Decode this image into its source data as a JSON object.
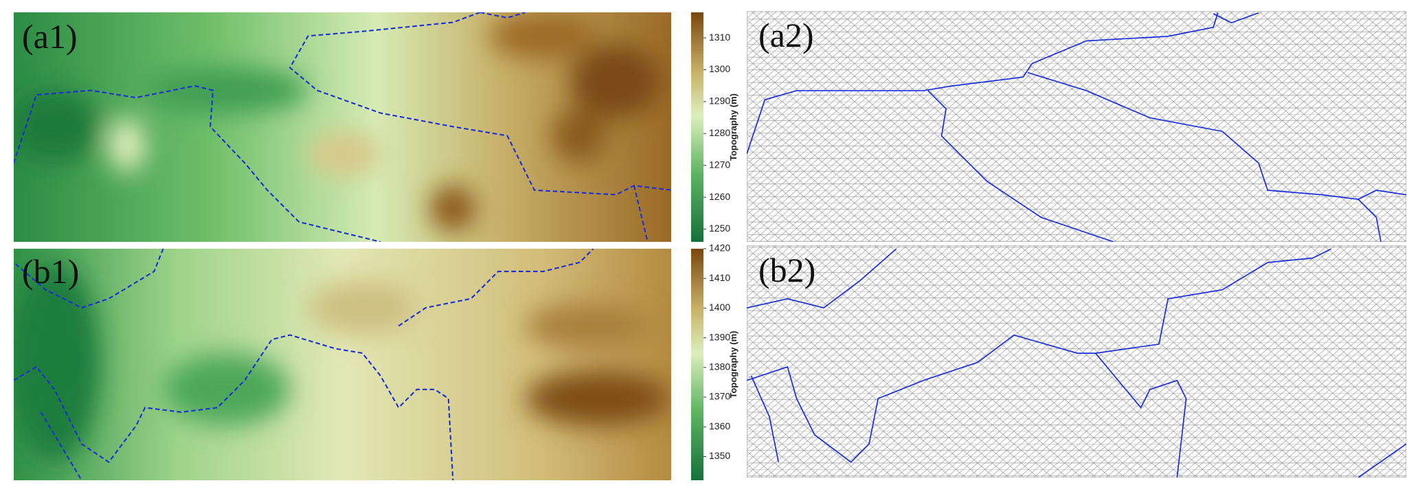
{
  "panels": [
    {
      "label": "(a1)"
    },
    {
      "label": "(a2)"
    },
    {
      "label": "(b1)"
    },
    {
      "label": "(b2)"
    }
  ],
  "colorbars": [
    {
      "axis_label": "Topography (m)",
      "lim": [
        1246,
        1318
      ],
      "ticks": [
        1250,
        1260,
        1270,
        1280,
        1290,
        1300,
        1310
      ]
    },
    {
      "axis_label": "Topography (m)",
      "lim": [
        1342,
        1420
      ],
      "ticks": [
        1350,
        1360,
        1370,
        1380,
        1390,
        1400,
        1410,
        1420
      ]
    }
  ]
}
